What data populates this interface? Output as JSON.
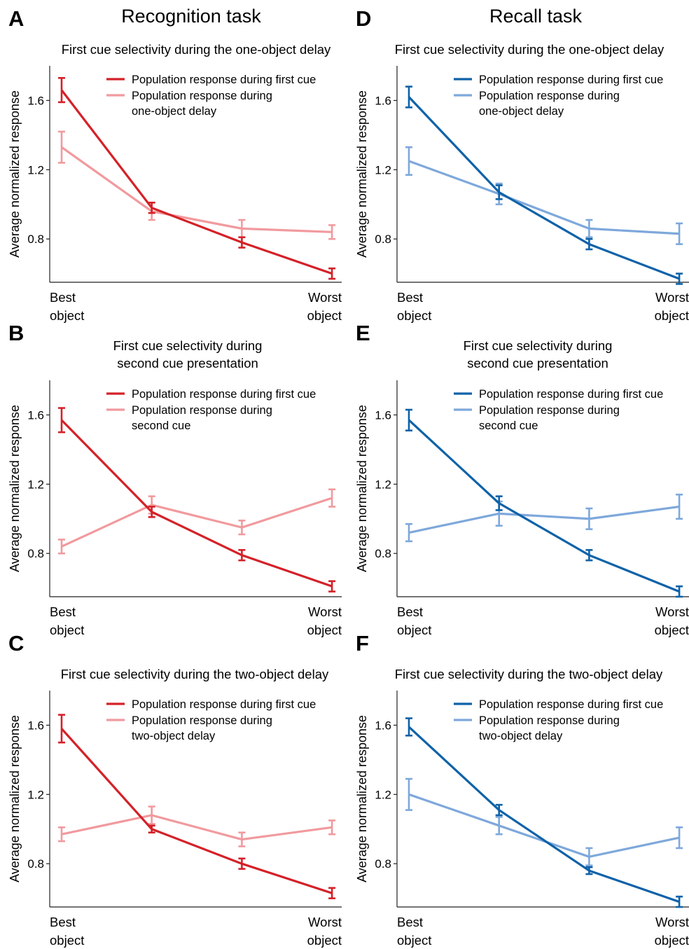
{
  "column_titles": {
    "left": "Recognition task",
    "right": "Recall task"
  },
  "axis": {
    "ylabel": "Average normalized response",
    "x_left": [
      "Best",
      "object"
    ],
    "x_right": [
      "Worst",
      "object"
    ]
  },
  "colors": {
    "red_dark": "#d42128",
    "red_light": "#f19a9e",
    "blue_dark": "#0e62a8",
    "blue_light": "#7ea8db"
  },
  "chart_data": [
    {
      "panel": "A",
      "type": "line",
      "title": [
        "First cue selectivity during the one-object delay"
      ],
      "ylim": [
        0.55,
        1.8
      ],
      "yticks": [
        0.8,
        1.2,
        1.6
      ],
      "x": [
        1,
        2,
        3,
        4
      ],
      "series": [
        {
          "name": "Population response during first cue",
          "color": "#d42128",
          "values": [
            1.66,
            0.98,
            0.78,
            0.6
          ],
          "errors": [
            0.07,
            0.03,
            0.03,
            0.03
          ]
        },
        {
          "name": "Population response during one-object delay",
          "legend_lines": [
            "Population response during",
            "one-object delay"
          ],
          "color": "#f19a9e",
          "values": [
            1.33,
            0.96,
            0.86,
            0.84
          ],
          "errors": [
            0.09,
            0.05,
            0.05,
            0.04
          ]
        }
      ]
    },
    {
      "panel": "B",
      "type": "line",
      "title": [
        "First cue selectivity during",
        "second cue presentation"
      ],
      "ylim": [
        0.55,
        1.8
      ],
      "yticks": [
        0.8,
        1.2,
        1.6
      ],
      "x": [
        1,
        2,
        3,
        4
      ],
      "series": [
        {
          "name": "Population response during first cue",
          "color": "#d42128",
          "values": [
            1.57,
            1.04,
            0.79,
            0.61
          ],
          "errors": [
            0.07,
            0.03,
            0.03,
            0.03
          ]
        },
        {
          "name": "Population response during second cue",
          "legend_lines": [
            "Population response during",
            "second cue"
          ],
          "color": "#f19a9e",
          "values": [
            0.84,
            1.08,
            0.95,
            1.12
          ],
          "errors": [
            0.04,
            0.05,
            0.04,
            0.05
          ]
        }
      ]
    },
    {
      "panel": "C",
      "type": "line",
      "title": [
        "First cue selectivity during the two-object delay"
      ],
      "ylim": [
        0.55,
        1.8
      ],
      "yticks": [
        0.8,
        1.2,
        1.6
      ],
      "x": [
        1,
        2,
        3,
        4
      ],
      "series": [
        {
          "name": "Population response during first cue",
          "color": "#d42128",
          "values": [
            1.58,
            1.0,
            0.8,
            0.63
          ],
          "errors": [
            0.08,
            0.02,
            0.03,
            0.03
          ]
        },
        {
          "name": "Population response during two-object delay",
          "legend_lines": [
            "Population response during",
            "two-object delay"
          ],
          "color": "#f19a9e",
          "values": [
            0.97,
            1.08,
            0.94,
            1.01
          ],
          "errors": [
            0.04,
            0.05,
            0.04,
            0.04
          ]
        }
      ]
    },
    {
      "panel": "D",
      "type": "line",
      "title": [
        "First cue selectivity during the one-object delay"
      ],
      "ylim": [
        0.55,
        1.8
      ],
      "yticks": [
        0.8,
        1.2,
        1.6
      ],
      "x": [
        1,
        2,
        3,
        4
      ],
      "series": [
        {
          "name": "Population response during first cue",
          "color": "#0e62a8",
          "values": [
            1.62,
            1.07,
            0.77,
            0.57
          ],
          "errors": [
            0.06,
            0.04,
            0.03,
            0.03
          ]
        },
        {
          "name": "Population response during one-object delay",
          "legend_lines": [
            "Population response during",
            "one-object delay"
          ],
          "color": "#7ea8db",
          "values": [
            1.25,
            1.06,
            0.86,
            0.83
          ],
          "errors": [
            0.08,
            0.06,
            0.05,
            0.06
          ]
        }
      ]
    },
    {
      "panel": "E",
      "type": "line",
      "title": [
        "First cue selectivity during",
        "second cue presentation"
      ],
      "ylim": [
        0.55,
        1.8
      ],
      "yticks": [
        0.8,
        1.2,
        1.6
      ],
      "x": [
        1,
        2,
        3,
        4
      ],
      "series": [
        {
          "name": "Population response during first cue",
          "color": "#0e62a8",
          "values": [
            1.57,
            1.09,
            0.79,
            0.58
          ],
          "errors": [
            0.06,
            0.04,
            0.03,
            0.03
          ]
        },
        {
          "name": "Population response during second cue",
          "legend_lines": [
            "Population response during",
            "second cue"
          ],
          "color": "#7ea8db",
          "values": [
            0.92,
            1.03,
            1.0,
            1.07
          ],
          "errors": [
            0.05,
            0.07,
            0.06,
            0.07
          ]
        }
      ]
    },
    {
      "panel": "F",
      "type": "line",
      "title": [
        "First cue selectivity during the two-object delay"
      ],
      "ylim": [
        0.55,
        1.8
      ],
      "yticks": [
        0.8,
        1.2,
        1.6
      ],
      "x": [
        1,
        2,
        3,
        4
      ],
      "series": [
        {
          "name": "Population response during first cue",
          "color": "#0e62a8",
          "values": [
            1.59,
            1.11,
            0.76,
            0.58
          ],
          "errors": [
            0.05,
            0.03,
            0.02,
            0.03
          ]
        },
        {
          "name": "Population response during two-object delay",
          "legend_lines": [
            "Population response during",
            "two-object delay"
          ],
          "color": "#7ea8db",
          "values": [
            1.2,
            1.02,
            0.84,
            0.95
          ],
          "errors": [
            0.09,
            0.05,
            0.05,
            0.06
          ]
        }
      ]
    }
  ]
}
